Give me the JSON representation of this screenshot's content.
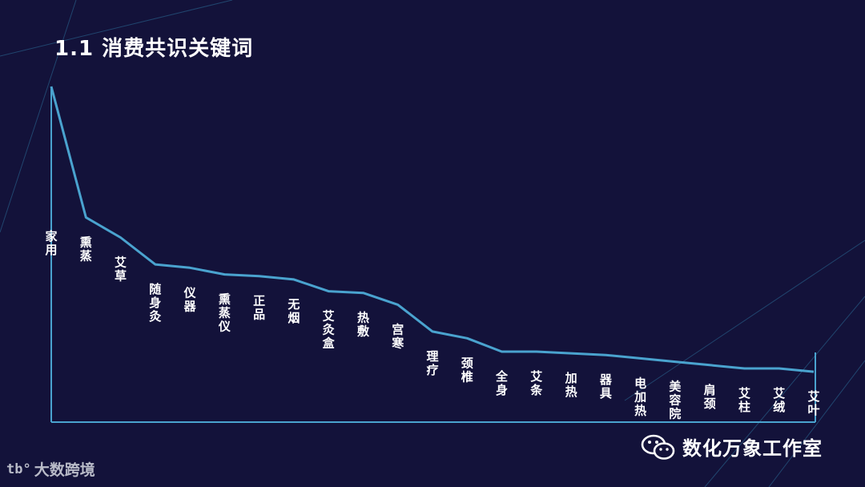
{
  "page": {
    "title": "1.1 消费共识关键词",
    "watermark": "数化万象工作室",
    "logo_mark": "tb°",
    "logo_text": "大数跨境"
  },
  "colors": {
    "background": "#13123a",
    "line": "#4aa3cf",
    "axis": "#4aa3cf",
    "text": "#ffffff",
    "deco": "#2c6f99"
  },
  "chart_data": {
    "type": "line",
    "title": "",
    "xlabel": "",
    "ylabel": "",
    "ylim": [
      0,
      100
    ],
    "grid": false,
    "categories": [
      "家用",
      "熏蒸",
      "艾草",
      "随身灸",
      "仪器",
      "熏蒸仪",
      "正品",
      "无烟",
      "艾灸盒",
      "热敷",
      "宫寒",
      "理疗",
      "颈椎",
      "全身",
      "艾条",
      "加热",
      "器具",
      "电加热",
      "美容院",
      "肩颈",
      "艾柱",
      "艾绒",
      "艾叶"
    ],
    "values": [
      100,
      61,
      55,
      47,
      46,
      44,
      43.5,
      42.5,
      39,
      38.5,
      35,
      27,
      25,
      21,
      21,
      20.5,
      20,
      19,
      18,
      17,
      16,
      16,
      15
    ]
  }
}
